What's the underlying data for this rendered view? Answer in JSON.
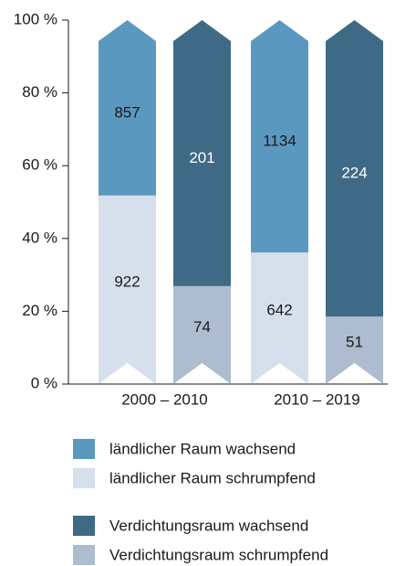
{
  "chart_data": {
    "type": "stacked_percent_bar",
    "categories": [
      "2000 – 2010",
      "2010 – 2019"
    ],
    "series_groups": [
      {
        "series": [
          {
            "name": "ländlicher Raum wachsend",
            "color": "#5b98c0",
            "values": [
              857,
              1134
            ]
          },
          {
            "name": "ländlicher Raum schrumpfend",
            "color": "#d6e0ec",
            "values": [
              922,
              642
            ]
          }
        ]
      },
      {
        "series": [
          {
            "name": "Verdichtungsraum wachsend",
            "color": "#3f6a85",
            "values": [
              201,
              224
            ]
          },
          {
            "name": "Verdichtungsraum schrumpfend",
            "color": "#adbccf",
            "values": [
              74,
              51
            ]
          }
        ]
      }
    ],
    "ylim": [
      0,
      100
    ],
    "yticks": [
      {
        "value": 0,
        "label": "0 %"
      },
      {
        "value": 20,
        "label": "20 %"
      },
      {
        "value": 40,
        "label": "40 %"
      },
      {
        "value": 60,
        "label": "60 %"
      },
      {
        "value": 80,
        "label": "80 %"
      },
      {
        "value": 100,
        "label": "100 %"
      }
    ]
  }
}
